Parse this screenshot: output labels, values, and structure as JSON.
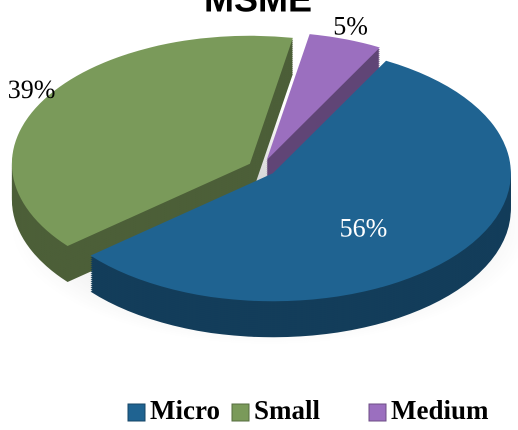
{
  "chart_data": {
    "type": "pie",
    "title": "MSME",
    "categories": [
      "Micro",
      "Small",
      "Medium"
    ],
    "values": [
      56,
      39,
      5
    ],
    "value_labels": [
      "56%",
      "39%",
      "5%"
    ],
    "colors": [
      "#1f6391",
      "#7a9a5a",
      "#9b6fbf"
    ],
    "legend": "bottom"
  }
}
